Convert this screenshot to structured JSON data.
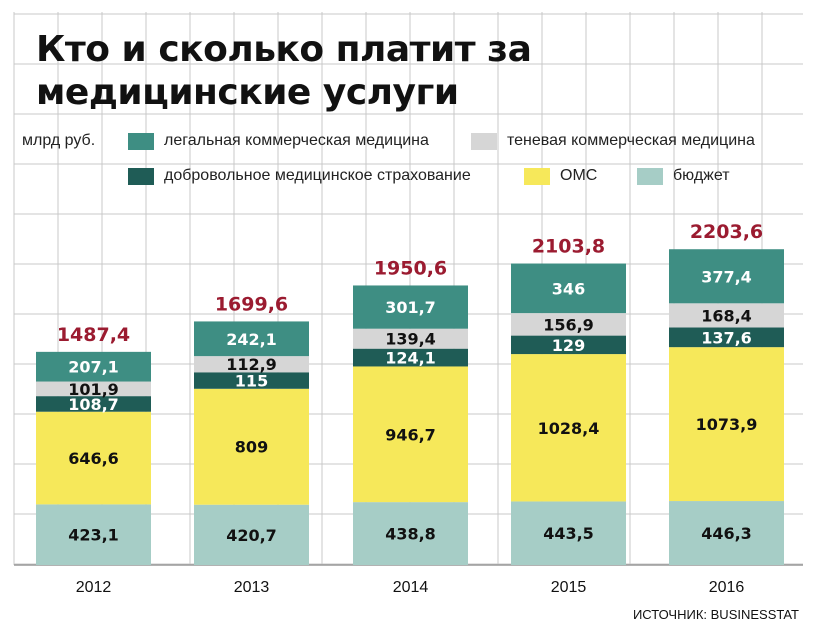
{
  "title": "Кто и сколько платит за медицинские услуги",
  "unit": "млрд руб.",
  "source": "ИСТОЧНИК: BUSINESSTAT",
  "colors": {
    "legal_commercial": "#3e8e83",
    "shadow_commercial": "#d6d6d6",
    "vmi": "#1f5c56",
    "oms": "#f6e85a",
    "budget": "#a6cdc6",
    "total": "#9b1b30",
    "grid": "#c8c8c8"
  },
  "legend": [
    {
      "key": "legal_commercial",
      "label": "легальная коммерческая медицина"
    },
    {
      "key": "shadow_commercial",
      "label": "теневая коммерческая медицина"
    },
    {
      "key": "vmi",
      "label": "добровольное медицинское страхование"
    },
    {
      "key": "oms",
      "label": "ОМС"
    },
    {
      "key": "budget",
      "label": "бюджет"
    }
  ],
  "chart_data": {
    "type": "bar",
    "stacked": true,
    "title": "Кто и сколько платит за медицинские услуги",
    "ylabel": "млрд руб.",
    "categories": [
      "2012",
      "2013",
      "2014",
      "2015",
      "2016"
    ],
    "series": [
      {
        "key": "budget",
        "name": "бюджет",
        "values": [
          423.1,
          420.7,
          438.8,
          443.5,
          446.3
        ],
        "labels": [
          "423,1",
          "420,7",
          "438,8",
          "443,5",
          "446,3"
        ]
      },
      {
        "key": "oms",
        "name": "ОМС",
        "values": [
          646.6,
          809,
          946.7,
          1028.4,
          1073.9
        ],
        "labels": [
          "646,6",
          "809",
          "946,7",
          "1028,4",
          "1073,9"
        ]
      },
      {
        "key": "vmi",
        "name": "добровольное медицинское страхование",
        "values": [
          108.7,
          115,
          124.1,
          129,
          137.6
        ],
        "labels": [
          "108,7",
          "115",
          "124,1",
          "129",
          "137,6"
        ]
      },
      {
        "key": "shadow_commercial",
        "name": "теневая коммерческая медицина",
        "values": [
          101.9,
          112.9,
          139.4,
          156.9,
          168.4
        ],
        "labels": [
          "101,9",
          "112,9",
          "139,4",
          "156,9",
          "168,4"
        ]
      },
      {
        "key": "legal_commercial",
        "name": "легальная коммерческая медицина",
        "values": [
          207.1,
          242.1,
          301.7,
          346,
          377.4
        ],
        "labels": [
          "207,1",
          "242,1",
          "301,7",
          "346",
          "377,4"
        ]
      }
    ],
    "totals": [
      1487.4,
      1699.6,
      1950.6,
      2103.8,
      2203.6
    ],
    "total_labels": [
      "1487,4",
      "1699,6",
      "1950,6",
      "2103,8",
      "2203,6"
    ],
    "legend_position": "top",
    "grid": true
  }
}
